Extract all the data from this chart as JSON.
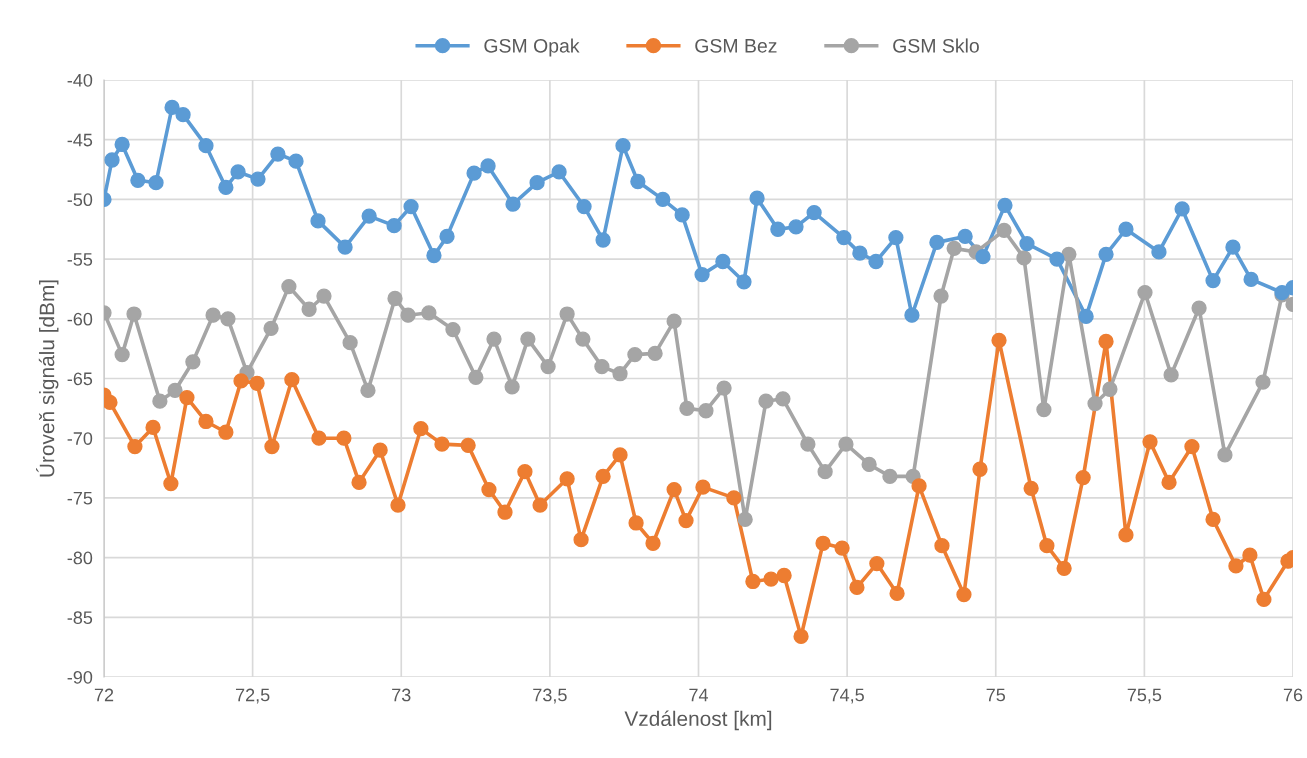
{
  "chart_data": {
    "type": "line",
    "xlabel": "Vzdálenost [km]",
    "ylabel": "Úroveň signálu [dBm]",
    "xlim": [
      72,
      76
    ],
    "xticks": [
      72,
      {
        "value": 72.5,
        "label": "72,5"
      },
      73,
      {
        "value": 73.5,
        "label": "73,5"
      },
      74,
      {
        "value": 74.5,
        "label": "74,5"
      },
      75,
      {
        "value": 75.5,
        "label": "75,5"
      },
      76
    ],
    "ylim": [
      -90,
      -40
    ],
    "yticks": [
      -90,
      -85,
      -80,
      -75,
      -70,
      -65,
      -60,
      -55,
      -50,
      -45,
      -40
    ],
    "grid": true,
    "legend": "top",
    "marker": "circle",
    "line_style": "solid",
    "series": [
      {
        "name": "GSM Opak",
        "color": "#5b9bd5",
        "x": [
          72.0,
          72.027,
          72.061,
          72.114,
          72.175,
          72.229,
          72.266,
          72.343,
          72.41,
          72.451,
          72.518,
          72.585,
          72.646,
          72.72,
          72.811,
          72.892,
          72.976,
          73.033,
          73.11,
          73.154,
          73.245,
          73.292,
          73.376,
          73.457,
          73.531,
          73.615,
          73.679,
          73.746,
          73.796,
          73.88,
          73.945,
          74.012,
          74.082,
          74.153,
          74.197,
          74.267,
          74.328,
          74.389,
          74.489,
          74.543,
          74.597,
          74.664,
          74.718,
          74.802,
          74.897,
          74.957,
          75.031,
          75.105,
          75.206,
          75.304,
          75.371,
          75.438,
          75.549,
          75.627,
          75.731,
          75.798,
          75.859,
          75.963,
          76.0
        ],
        "values": [
          -50.0,
          -46.7,
          -45.4,
          -48.4,
          -48.6,
          -42.3,
          -42.9,
          -45.5,
          -49.0,
          -47.7,
          -48.3,
          -46.2,
          -46.8,
          -51.8,
          -54.0,
          -51.4,
          -52.2,
          -50.6,
          -54.7,
          -53.1,
          -47.8,
          -47.2,
          -50.4,
          -48.6,
          -47.7,
          -50.6,
          -53.4,
          -45.5,
          -48.5,
          -50.0,
          -51.3,
          -56.3,
          -55.2,
          -56.9,
          -49.9,
          -52.5,
          -52.3,
          -51.1,
          -53.2,
          -54.5,
          -55.2,
          -53.2,
          -59.7,
          -53.6,
          -53.1,
          -54.8,
          -50.5,
          -53.7,
          -55.0,
          -59.8,
          -54.6,
          -52.5,
          -54.4,
          -50.8,
          -56.8,
          -54.0,
          -56.7,
          -57.8,
          -57.4
        ]
      },
      {
        "name": "GSM Bez",
        "color": "#ed7d31",
        "x": [
          72.0,
          72.02,
          72.104,
          72.165,
          72.225,
          72.279,
          72.343,
          72.41,
          72.461,
          72.515,
          72.565,
          72.632,
          72.723,
          72.807,
          72.858,
          72.929,
          72.989,
          73.066,
          73.137,
          73.225,
          73.295,
          73.349,
          73.416,
          73.467,
          73.558,
          73.605,
          73.679,
          73.736,
          73.79,
          73.847,
          73.918,
          73.958,
          74.015,
          74.119,
          74.183,
          74.244,
          74.288,
          74.345,
          74.419,
          74.483,
          74.533,
          74.6,
          74.668,
          74.742,
          74.819,
          74.893,
          74.947,
          75.011,
          75.119,
          75.172,
          75.23,
          75.294,
          75.371,
          75.438,
          75.519,
          75.583,
          75.66,
          75.731,
          75.808,
          75.855,
          75.902,
          75.983,
          76.0
        ],
        "values": [
          -66.4,
          -67.0,
          -70.7,
          -69.1,
          -73.8,
          -66.6,
          -68.6,
          -69.5,
          -65.2,
          -65.4,
          -70.7,
          -65.1,
          -70.0,
          -70.0,
          -73.7,
          -71.0,
          -75.6,
          -69.2,
          -70.5,
          -70.6,
          -74.3,
          -76.2,
          -72.8,
          -75.6,
          -73.4,
          -78.5,
          -73.2,
          -71.4,
          -77.1,
          -78.8,
          -74.3,
          -76.9,
          -74.1,
          -75.0,
          -82.0,
          -81.8,
          -81.5,
          -86.6,
          -78.8,
          -79.2,
          -82.5,
          -80.5,
          -83.0,
          -74.0,
          -79.0,
          -83.1,
          -72.6,
          -61.8,
          -74.2,
          -79.0,
          -80.9,
          -73.3,
          -61.9,
          -78.1,
          -70.3,
          -73.7,
          -70.7,
          -76.8,
          -80.7,
          -79.8,
          -83.5,
          -80.3,
          -80.0
        ]
      },
      {
        "name": "GSM Sklo",
        "color": "#a5a5a5",
        "x": [
          72.0,
          72.061,
          72.101,
          72.188,
          72.239,
          72.299,
          72.367,
          72.417,
          72.481,
          72.562,
          72.622,
          72.69,
          72.74,
          72.828,
          72.888,
          72.979,
          73.023,
          73.093,
          73.174,
          73.251,
          73.312,
          73.373,
          73.426,
          73.494,
          73.558,
          73.611,
          73.675,
          73.736,
          73.786,
          73.854,
          73.918,
          73.961,
          74.025,
          74.086,
          74.157,
          74.227,
          74.284,
          74.368,
          74.426,
          74.496,
          74.574,
          74.644,
          74.722,
          74.816,
          74.86,
          74.934,
          75.028,
          75.095,
          75.162,
          75.246,
          75.334,
          75.384,
          75.502,
          75.59,
          75.684,
          75.771,
          75.899,
          75.963,
          76.0
        ],
        "values": [
          -59.5,
          -63.0,
          -59.6,
          -66.9,
          -66.0,
          -63.6,
          -59.7,
          -60.0,
          -64.5,
          -60.8,
          -57.3,
          -59.2,
          -58.1,
          -62.0,
          -66.0,
          -58.3,
          -59.7,
          -59.5,
          -60.9,
          -64.9,
          -61.7,
          -65.7,
          -61.7,
          -64.0,
          -59.6,
          -61.7,
          -64.0,
          -64.6,
          -63.0,
          -62.9,
          -60.2,
          -67.5,
          -67.7,
          -65.8,
          -76.8,
          -66.9,
          -66.7,
          -70.5,
          -72.8,
          -70.5,
          -72.2,
          -73.2,
          -73.2,
          -58.1,
          -54.1,
          -54.4,
          -52.6,
          -54.9,
          -67.6,
          -54.6,
          -67.1,
          -65.9,
          -57.8,
          -64.7,
          -59.1,
          -71.4,
          -65.3,
          -58.0,
          -58.8
        ]
      }
    ]
  }
}
